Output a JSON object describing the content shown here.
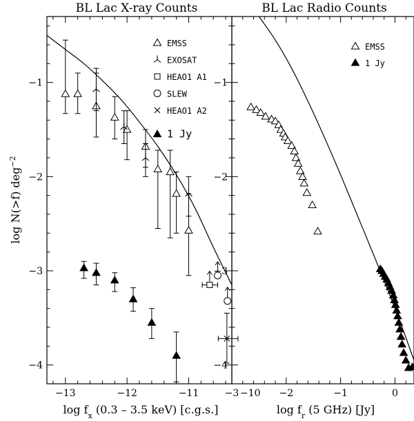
{
  "chart_data": [
    {
      "type": "scatter",
      "title": "BL Lac X-ray Counts",
      "xlabel": "log f_x (0.3 - 3.5 keV) [c.g.s.]",
      "xlabel_main": "log f",
      "xlabel_sub": "x",
      "xlabel_rest": " (0.3 – 3.5 keV) [c.g.s.]",
      "ylabel": "log N(>f) deg^-2",
      "ylabel_main": "log N(>f) deg",
      "ylabel_sup": "−2",
      "xlim": [
        -13.3,
        -10.3
      ],
      "ylim": [
        -4.2,
        -0.3
      ],
      "xticks": [
        -13,
        -12,
        -11,
        -10
      ],
      "xtick_labels": [
        "−13",
        "−12",
        "−11",
        "−10"
      ],
      "yticks": [
        -4,
        -3,
        -2,
        -1
      ],
      "ytick_labels": [
        "−4",
        "−3",
        "−2",
        "−1"
      ],
      "legend_position": "top-right",
      "series": [
        {
          "name": "EMSS",
          "marker": "open-triangle",
          "points": [
            {
              "x": -13.0,
              "y": -1.12,
              "ylo": -1.33,
              "yhi": -0.55
            },
            {
              "x": -12.8,
              "y": -1.12,
              "ylo": -1.33,
              "yhi": -0.9
            },
            {
              "x": -12.5,
              "y": -1.25,
              "ylo": -1.58,
              "yhi": -0.9
            },
            {
              "x": -12.2,
              "y": -1.37,
              "ylo": -1.6,
              "yhi": -1.15
            },
            {
              "x": -12.0,
              "y": -1.5,
              "ylo": -1.82,
              "yhi": -1.3
            },
            {
              "x": -11.7,
              "y": -1.68,
              "ylo": -1.9,
              "yhi": -1.5
            },
            {
              "x": -11.5,
              "y": -1.92,
              "ylo": -2.55,
              "yhi": -1.72
            },
            {
              "x": -11.3,
              "y": -1.95,
              "ylo": -2.65,
              "yhi": -1.72
            },
            {
              "x": -11.2,
              "y": -2.18,
              "ylo": -2.6,
              "yhi": -1.95
            },
            {
              "x": -11.0,
              "y": -2.57,
              "ylo": -3.05,
              "yhi": -2.18
            }
          ]
        },
        {
          "name": "EXOSAT",
          "marker": "tripod",
          "points": [
            {
              "x": -12.5,
              "y": -1.07,
              "ylo": -1.3,
              "yhi": -0.85
            },
            {
              "x": -12.05,
              "y": -1.47,
              "ylo": -1.65,
              "yhi": -1.3
            },
            {
              "x": -11.7,
              "y": -1.8,
              "ylo": -2.0,
              "yhi": -1.65
            },
            {
              "x": -11.0,
              "y": -2.18,
              "ylo": -2.42,
              "yhi": -2.0
            }
          ]
        },
        {
          "name": "HEAO1 A1",
          "marker": "open-square",
          "points": [
            {
              "x": -10.66,
              "y": -3.15,
              "xlo": -10.78,
              "xhi": -10.53,
              "arrow": "up"
            }
          ]
        },
        {
          "name": "SLEW",
          "marker": "open-circle",
          "points": [
            {
              "x": -10.53,
              "y": -3.05,
              "arrow": "up"
            },
            {
              "x": -10.37,
              "y": -3.32,
              "arrow": "up"
            }
          ]
        },
        {
          "name": "HEAO1 A2",
          "marker": "cross",
          "points": [
            {
              "x": -10.38,
              "y": -3.72,
              "ylo": -3.98,
              "yhi": -3.45,
              "xlo": -10.52,
              "xhi": -10.2
            }
          ]
        },
        {
          "name": "1 Jy",
          "marker": "filled-triangle",
          "points": [
            {
              "x": -12.7,
              "y": -2.97,
              "ylo": -3.08,
              "yhi": -2.9
            },
            {
              "x": -12.5,
              "y": -3.02,
              "ylo": -3.15,
              "yhi": -2.92
            },
            {
              "x": -12.2,
              "y": -3.1,
              "ylo": -3.22,
              "yhi": -3.02
            },
            {
              "x": -11.9,
              "y": -3.3,
              "ylo": -3.43,
              "yhi": -3.18
            },
            {
              "x": -11.6,
              "y": -3.55,
              "ylo": -3.72,
              "yhi": -3.4
            },
            {
              "x": -11.2,
              "y": -3.9,
              "ylo": -4.18,
              "yhi": -3.65
            }
          ]
        }
      ],
      "model_curve": {
        "x": [
          -13.3,
          -13.0,
          -12.7,
          -12.4,
          -12.1,
          -11.8,
          -11.5,
          -11.2,
          -10.9,
          -10.6,
          -10.3
        ],
        "y": [
          -0.5,
          -0.65,
          -0.8,
          -0.98,
          -1.18,
          -1.42,
          -1.68,
          -1.98,
          -2.33,
          -2.75,
          -3.15
        ]
      }
    },
    {
      "type": "scatter",
      "title": "BL Lac Radio Counts",
      "xlabel": "log f_r (5 GHz) [Jy]",
      "xlabel_main": "log f",
      "xlabel_sub": "r",
      "xlabel_rest": " (5 GHz) [Jy]",
      "ylabel": "",
      "xlim": [
        -3.0,
        0.35
      ],
      "ylim": [
        -4.2,
        -0.3
      ],
      "xticks": [
        -3,
        -2,
        -1,
        0
      ],
      "xtick_labels": [
        "−3",
        "−2",
        "−1",
        "0"
      ],
      "yticks": [
        -4,
        -3,
        -2,
        -1
      ],
      "ytick_labels": [
        "−4",
        "−3",
        "−2",
        "−1"
      ],
      "legend_position": "top-right",
      "series": [
        {
          "name": "EMSS",
          "marker": "open-triangle",
          "points": [
            {
              "x": -2.65,
              "y": -1.26
            },
            {
              "x": -2.55,
              "y": -1.29
            },
            {
              "x": -2.47,
              "y": -1.32
            },
            {
              "x": -2.38,
              "y": -1.36
            },
            {
              "x": -2.27,
              "y": -1.39
            },
            {
              "x": -2.2,
              "y": -1.41
            },
            {
              "x": -2.14,
              "y": -1.45
            },
            {
              "x": -2.1,
              "y": -1.5
            },
            {
              "x": -2.05,
              "y": -1.54
            },
            {
              "x": -2.02,
              "y": -1.58
            },
            {
              "x": -1.97,
              "y": -1.62
            },
            {
              "x": -1.9,
              "y": -1.67
            },
            {
              "x": -1.85,
              "y": -1.73
            },
            {
              "x": -1.82,
              "y": -1.8
            },
            {
              "x": -1.78,
              "y": -1.86
            },
            {
              "x": -1.74,
              "y": -1.94
            },
            {
              "x": -1.7,
              "y": -2.0
            },
            {
              "x": -1.67,
              "y": -2.07
            },
            {
              "x": -1.62,
              "y": -2.17
            },
            {
              "x": -1.52,
              "y": -2.3
            },
            {
              "x": -1.42,
              "y": -2.58
            }
          ]
        },
        {
          "name": "1 Jy",
          "marker": "filled-triangle",
          "points": [
            {
              "x": -0.27,
              "y": -2.98
            },
            {
              "x": -0.24,
              "y": -3.0
            },
            {
              "x": -0.21,
              "y": -3.03
            },
            {
              "x": -0.18,
              "y": -3.06
            },
            {
              "x": -0.15,
              "y": -3.09
            },
            {
              "x": -0.12,
              "y": -3.13
            },
            {
              "x": -0.09,
              "y": -3.17
            },
            {
              "x": -0.06,
              "y": -3.21
            },
            {
              "x": -0.03,
              "y": -3.26
            },
            {
              "x": -0.01,
              "y": -3.31
            },
            {
              "x": 0.01,
              "y": -3.36
            },
            {
              "x": 0.03,
              "y": -3.42
            },
            {
              "x": 0.05,
              "y": -3.48
            },
            {
              "x": 0.07,
              "y": -3.55
            },
            {
              "x": 0.09,
              "y": -3.62
            },
            {
              "x": 0.11,
              "y": -3.7
            },
            {
              "x": 0.13,
              "y": -3.78
            },
            {
              "x": 0.16,
              "y": -3.87
            },
            {
              "x": 0.2,
              "y": -3.95
            },
            {
              "x": 0.25,
              "y": -4.03
            },
            {
              "x": 0.32,
              "y": -4.02
            }
          ]
        }
      ],
      "model_curve": {
        "x": [
          -2.5,
          -2.2,
          -1.9,
          -1.6,
          -1.3,
          -1.0,
          -0.7,
          -0.4,
          -0.1,
          0.1,
          0.35
        ],
        "y": [
          -0.3,
          -0.55,
          -0.85,
          -1.2,
          -1.58,
          -1.98,
          -2.4,
          -2.82,
          -3.25,
          -3.55,
          -3.95
        ]
      }
    }
  ]
}
